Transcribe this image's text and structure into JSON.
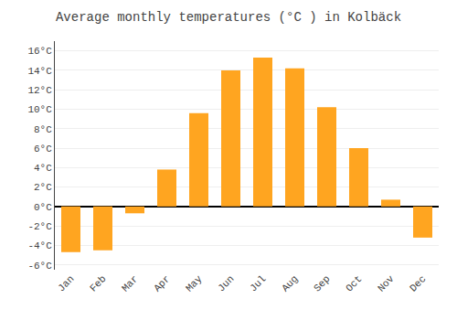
{
  "chart_data": {
    "type": "bar",
    "title": "Average monthly temperatures (°C ) in Kolbäck",
    "categories": [
      "Jan",
      "Feb",
      "Mar",
      "Apr",
      "May",
      "Jun",
      "Jul",
      "Aug",
      "Sep",
      "Oct",
      "Nov",
      "Dec"
    ],
    "values": [
      -4.7,
      -4.5,
      -0.7,
      3.8,
      9.6,
      14.0,
      15.3,
      14.2,
      10.2,
      6.0,
      0.7,
      -3.2
    ],
    "color": "#FFA520",
    "ylim": [
      -6.5,
      17
    ],
    "yticks": [
      {
        "value": -6,
        "label": "-6°C"
      },
      {
        "value": -4,
        "label": "-4°C"
      },
      {
        "value": -2,
        "label": "-2°C"
      },
      {
        "value": 0,
        "label": "0°C"
      },
      {
        "value": 2,
        "label": "2°C"
      },
      {
        "value": 4,
        "label": "4°C"
      },
      {
        "value": 6,
        "label": "6°C"
      },
      {
        "value": 8,
        "label": "8°C"
      },
      {
        "value": 10,
        "label": "10°C"
      },
      {
        "value": 12,
        "label": "12°C"
      },
      {
        "value": 14,
        "label": "14°C"
      },
      {
        "value": 16,
        "label": "16°C"
      }
    ],
    "grid": true
  }
}
